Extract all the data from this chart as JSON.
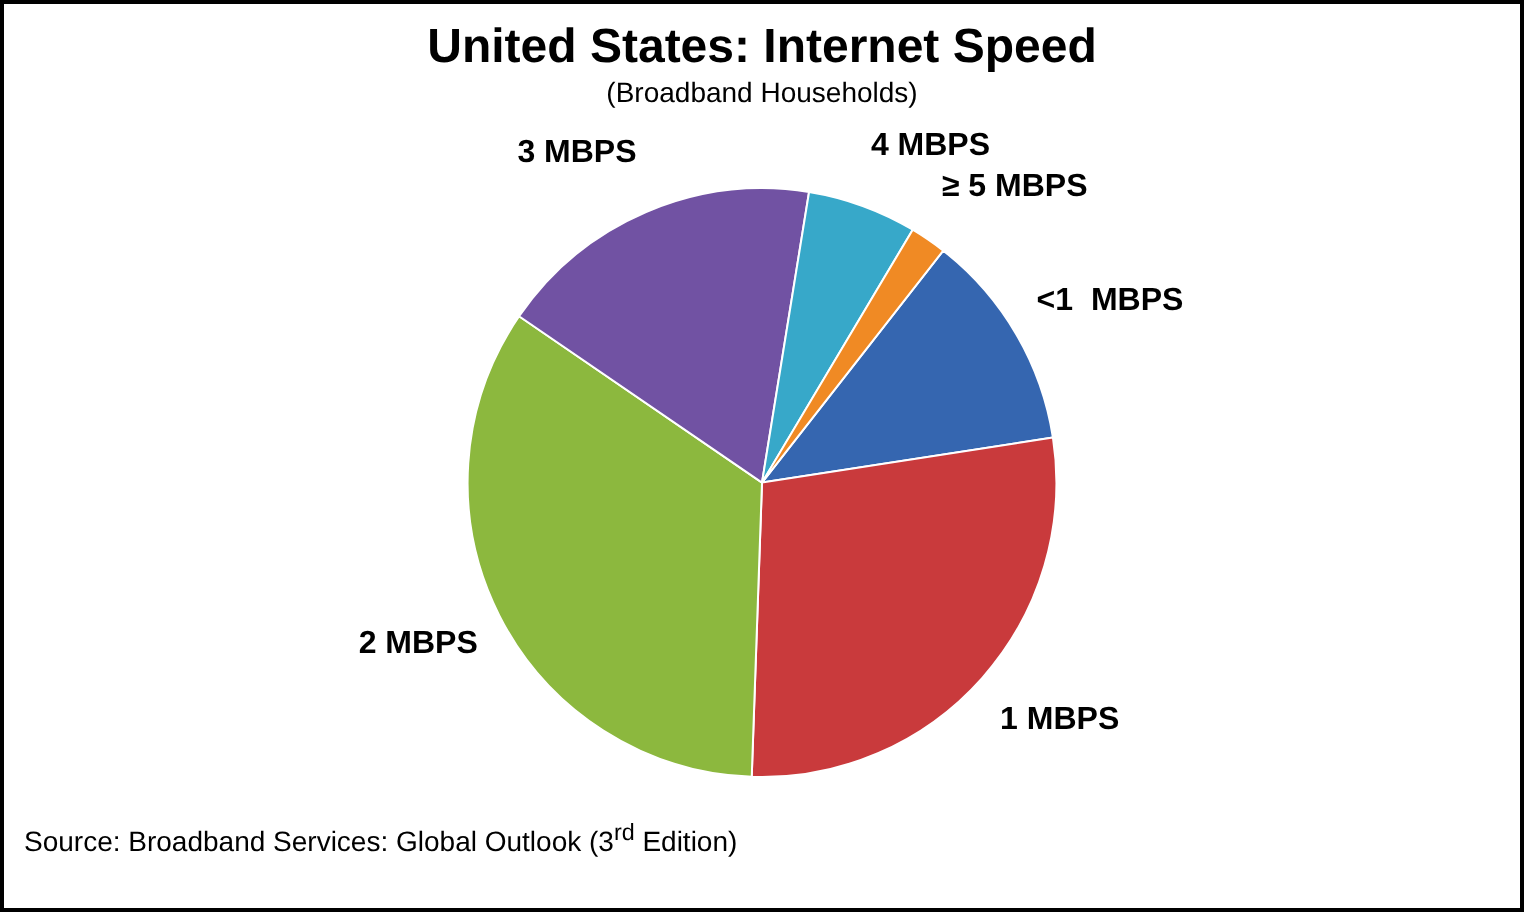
{
  "chart_data": {
    "type": "pie",
    "title": "United States: Internet Speed",
    "subtitle": "(Broadband Households)",
    "categories": [
      "<1  MBPS",
      "1 MBPS",
      "2 MBPS",
      "3 MBPS",
      "4 MBPS",
      "≥ 5 MBPS"
    ],
    "values": [
      12,
      28,
      34,
      18,
      6,
      2
    ],
    "colors": [
      "#3566b0",
      "#c93a3c",
      "#8cb83e",
      "#7152a3",
      "#37a8c9",
      "#f08a24"
    ],
    "legend": false,
    "annotations": [
      "Source: Broadband Services: Global Outlook (3$^{rd}$ Edition)"
    ]
  }
}
